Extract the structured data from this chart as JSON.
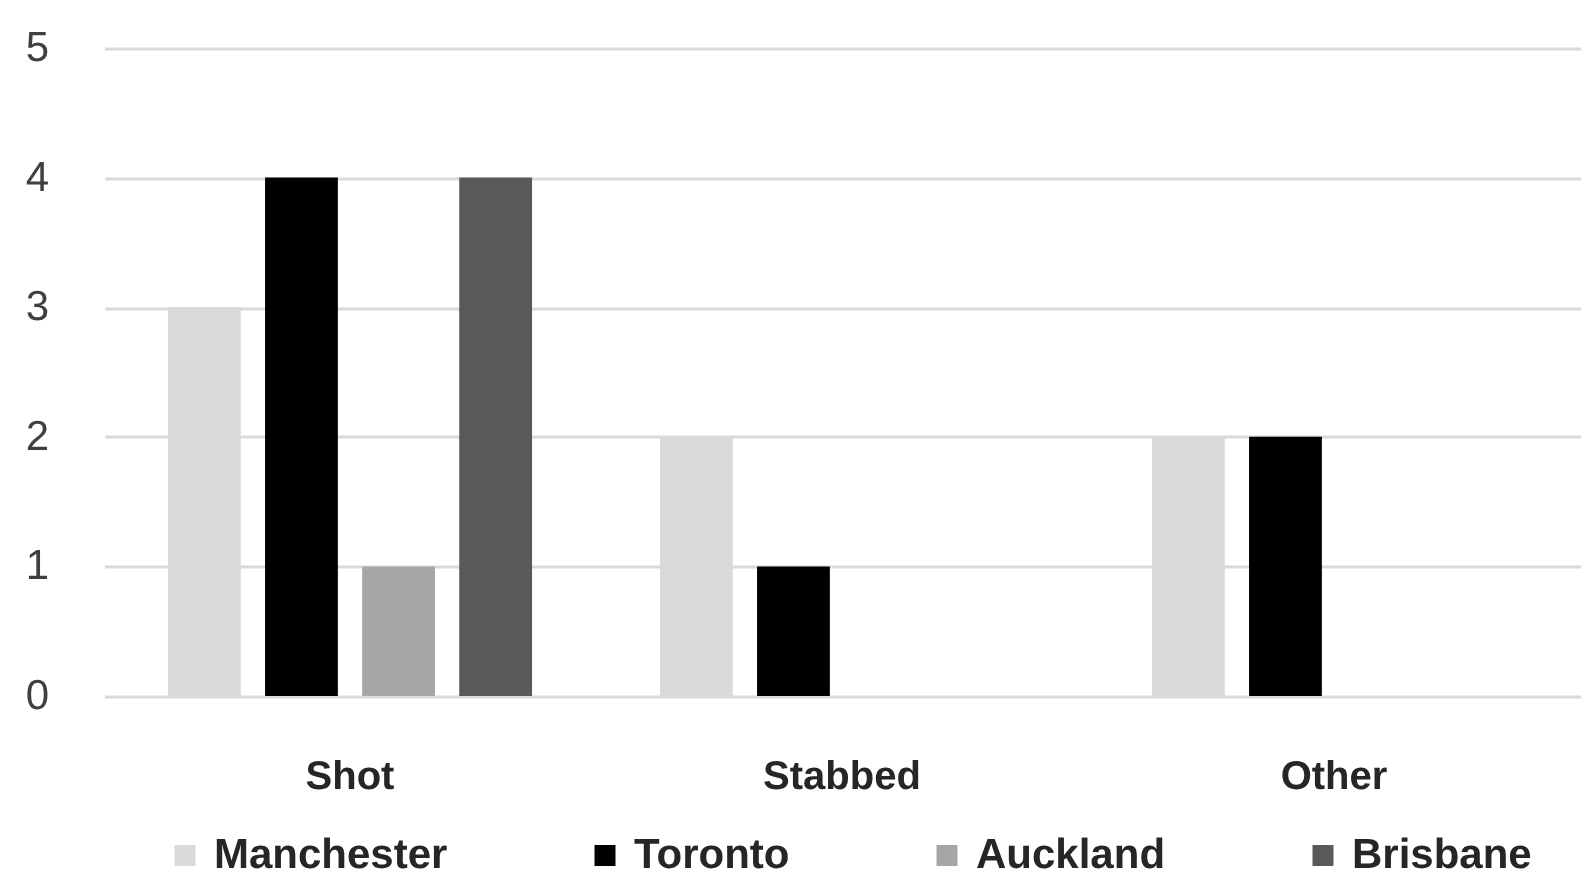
{
  "chart_data": {
    "type": "bar",
    "categories": [
      "Shot",
      "Stabbed",
      "Other"
    ],
    "series": [
      {
        "name": "Manchester",
        "color": "#d9d9d9",
        "values": [
          3,
          2,
          2
        ]
      },
      {
        "name": "Toronto",
        "color": "#000000",
        "values": [
          4,
          1,
          2
        ]
      },
      {
        "name": "Auckland",
        "color": "#a6a6a6",
        "values": [
          1,
          0,
          0
        ]
      },
      {
        "name": "Brisbane",
        "color": "#595959",
        "values": [
          4,
          0,
          0
        ]
      }
    ],
    "ylim": [
      0,
      5
    ],
    "yticks": [
      0,
      1,
      2,
      3,
      4,
      5
    ],
    "grid": "y",
    "legend": "bottom"
  }
}
